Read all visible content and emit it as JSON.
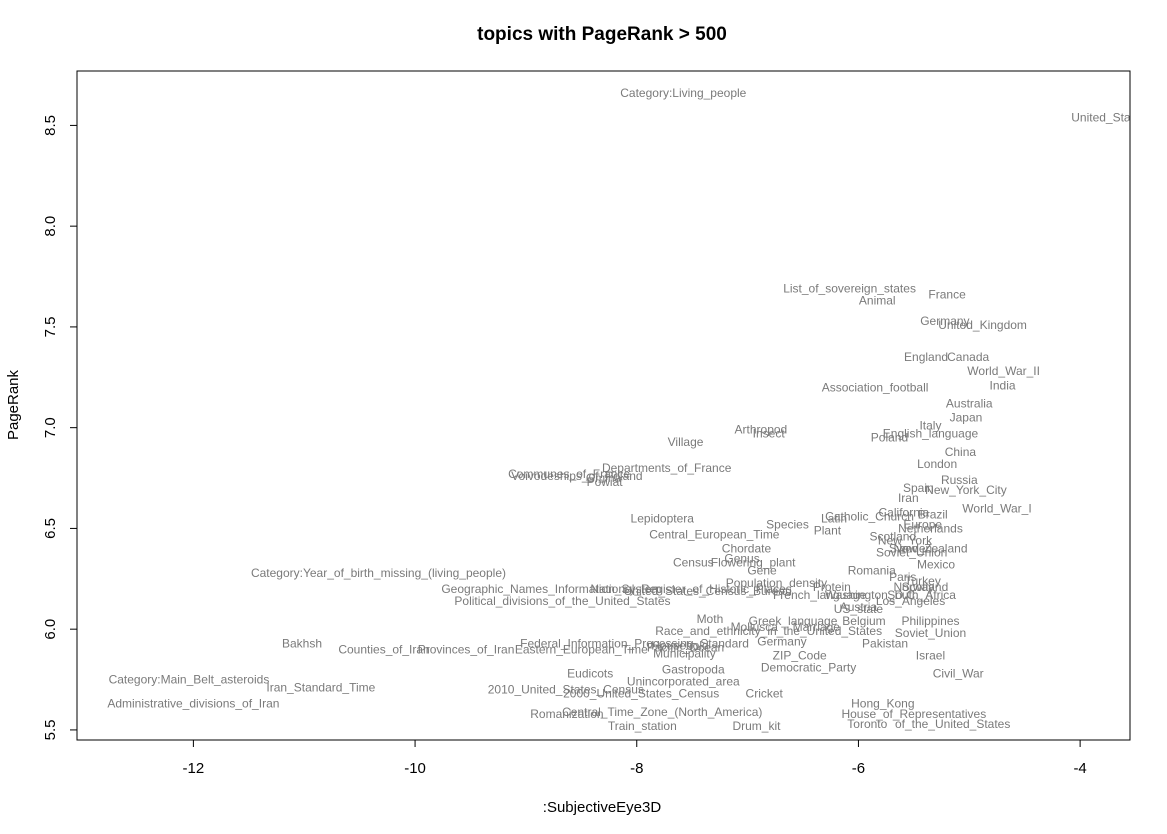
{
  "chart_data": {
    "type": "scatter",
    "title": "topics with PageRank > 500",
    "xlabel": ":SubjectiveEye3D",
    "ylabel": "PageRank",
    "xlim": [
      -13.05,
      -3.55
    ],
    "ylim": [
      5.45,
      8.77
    ],
    "x_ticks": [
      -12,
      -10,
      -8,
      -6,
      -4
    ],
    "x_tick_labels": [
      "-12",
      "-10",
      "-8",
      "-6",
      "-4"
    ],
    "y_ticks": [
      5.5,
      6.0,
      6.5,
      7.0,
      7.5,
      8.0,
      8.5
    ],
    "y_tick_labels": [
      "5.5",
      "6.0",
      "6.5",
      "7.0",
      "7.5",
      "8.0",
      "8.5"
    ],
    "grid": false,
    "legend": "none",
    "marker": "text-label",
    "points": [
      {
        "label": "Category:Living_people",
        "x": -7.58,
        "y": 8.66
      },
      {
        "label": "United_States",
        "x": -3.74,
        "y": 8.54
      },
      {
        "label": "List_of_sovereign_states",
        "x": -6.08,
        "y": 7.69
      },
      {
        "label": "Animal",
        "x": -5.83,
        "y": 7.63
      },
      {
        "label": "France",
        "x": -5.2,
        "y": 7.66
      },
      {
        "label": "Germany",
        "x": -5.22,
        "y": 7.53
      },
      {
        "label": "United_Kingdom",
        "x": -4.88,
        "y": 7.51
      },
      {
        "label": "England",
        "x": -5.39,
        "y": 7.35
      },
      {
        "label": "Canada",
        "x": -5.01,
        "y": 7.35
      },
      {
        "label": "World_War_II",
        "x": -4.69,
        "y": 7.28
      },
      {
        "label": "India",
        "x": -4.7,
        "y": 7.21
      },
      {
        "label": "Association_football",
        "x": -5.85,
        "y": 7.2
      },
      {
        "label": "Australia",
        "x": -5.0,
        "y": 7.12
      },
      {
        "label": "Japan",
        "x": -5.03,
        "y": 7.05
      },
      {
        "label": "Italy",
        "x": -5.35,
        "y": 7.01
      },
      {
        "label": "English_language",
        "x": -5.35,
        "y": 6.97
      },
      {
        "label": "Poland",
        "x": -5.72,
        "y": 6.95
      },
      {
        "label": "Arthropod",
        "x": -6.88,
        "y": 6.99
      },
      {
        "label": "Insect",
        "x": -6.81,
        "y": 6.97
      },
      {
        "label": "Village",
        "x": -7.56,
        "y": 6.93
      },
      {
        "label": "China",
        "x": -5.08,
        "y": 6.88
      },
      {
        "label": "London",
        "x": -5.29,
        "y": 6.82
      },
      {
        "label": "Departments_of_France",
        "x": -7.73,
        "y": 6.8
      },
      {
        "label": "Communes_of_France",
        "x": -8.61,
        "y": 6.77
      },
      {
        "label": "Voivodeships_of_Poland",
        "x": -8.54,
        "y": 6.76
      },
      {
        "label": "Gmina",
        "x": -8.3,
        "y": 6.75
      },
      {
        "label": "Powiat",
        "x": -8.29,
        "y": 6.73
      },
      {
        "label": "Russia",
        "x": -5.09,
        "y": 6.74
      },
      {
        "label": "Spain",
        "x": -5.46,
        "y": 6.7
      },
      {
        "label": "New_York_City",
        "x": -5.03,
        "y": 6.69
      },
      {
        "label": "Iran",
        "x": -5.55,
        "y": 6.65
      },
      {
        "label": "World_War_I",
        "x": -4.75,
        "y": 6.6
      },
      {
        "label": "California",
        "x": -5.59,
        "y": 6.58
      },
      {
        "label": "Brazil",
        "x": -5.33,
        "y": 6.57
      },
      {
        "label": "Catholic_Church",
        "x": -5.9,
        "y": 6.56
      },
      {
        "label": "Latin",
        "x": -6.22,
        "y": 6.55
      },
      {
        "label": "Lepidoptera",
        "x": -7.77,
        "y": 6.55
      },
      {
        "label": "Species",
        "x": -6.64,
        "y": 6.52
      },
      {
        "label": "Europe",
        "x": -5.42,
        "y": 6.52
      },
      {
        "label": "Netherlands",
        "x": -5.35,
        "y": 6.5
      },
      {
        "label": "Plant",
        "x": -6.28,
        "y": 6.49
      },
      {
        "label": "Central_European_Time",
        "x": -7.3,
        "y": 6.47
      },
      {
        "label": "Scotland",
        "x": -5.69,
        "y": 6.46
      },
      {
        "label": "New_York",
        "x": -5.58,
        "y": 6.44
      },
      {
        "label": "Chordate",
        "x": -7.01,
        "y": 6.4
      },
      {
        "label": "Sweden",
        "x": -5.53,
        "y": 6.4
      },
      {
        "label": "New_Zealand",
        "x": -5.35,
        "y": 6.4
      },
      {
        "label": "Soviet_Union",
        "x": -5.52,
        "y": 6.38
      },
      {
        "label": "Census",
        "x": -7.49,
        "y": 6.33
      },
      {
        "label": "Flowering_plant",
        "x": -6.95,
        "y": 6.33
      },
      {
        "label": "Genus",
        "x": -7.05,
        "y": 6.35
      },
      {
        "label": "Mexico",
        "x": -5.3,
        "y": 6.32
      },
      {
        "label": "Gene",
        "x": -6.87,
        "y": 6.29
      },
      {
        "label": "Romania",
        "x": -5.88,
        "y": 6.29
      },
      {
        "label": "Category:Year_of_birth_missing_(living_people)",
        "x": -10.33,
        "y": 6.28
      },
      {
        "label": "Paris",
        "x": -5.6,
        "y": 6.26
      },
      {
        "label": "Turkey",
        "x": -5.42,
        "y": 6.24
      },
      {
        "label": "Population_density",
        "x": -6.74,
        "y": 6.23
      },
      {
        "label": "Protein",
        "x": -6.24,
        "y": 6.21
      },
      {
        "label": "Norway",
        "x": -5.5,
        "y": 6.21
      },
      {
        "label": "Scotland",
        "x": -5.4,
        "y": 6.21
      },
      {
        "label": "Geographic_Names_Information_System",
        "x": -8.77,
        "y": 6.2
      },
      {
        "label": "National_Register_of_Historic_Places",
        "x": -7.51,
        "y": 6.2
      },
      {
        "label": "United_States_Census_Bureau",
        "x": -7.36,
        "y": 6.19
      },
      {
        "label": "French_language",
        "x": -6.35,
        "y": 6.17
      },
      {
        "label": "Washington_D.C.",
        "x": -5.88,
        "y": 6.17
      },
      {
        "label": "South_Africa",
        "x": -5.43,
        "y": 6.17
      },
      {
        "label": "Political_divisions_of_the_United_States",
        "x": -8.67,
        "y": 6.14
      },
      {
        "label": "Los_Angeles",
        "x": -5.53,
        "y": 6.14
      },
      {
        "label": "Austria",
        "x": -6.0,
        "y": 6.11
      },
      {
        "label": "US_state",
        "x": -6.0,
        "y": 6.1
      },
      {
        "label": "Moth",
        "x": -7.34,
        "y": 6.05
      },
      {
        "label": "Greek_language",
        "x": -6.59,
        "y": 6.04
      },
      {
        "label": "Belgium",
        "x": -5.95,
        "y": 6.04
      },
      {
        "label": "Philippines",
        "x": -5.35,
        "y": 6.04
      },
      {
        "label": "Mollusca",
        "x": -6.94,
        "y": 6.01
      },
      {
        "label": "Marriage",
        "x": -6.38,
        "y": 6.01
      },
      {
        "label": "Race_and_ethnicity_in_the_United_States",
        "x": -6.81,
        "y": 5.99
      },
      {
        "label": "Soviet_Union",
        "x": -5.35,
        "y": 5.98
      },
      {
        "label": "Bakhsh",
        "x": -11.02,
        "y": 5.93
      },
      {
        "label": "Counties_of_Iran",
        "x": -10.28,
        "y": 5.9
      },
      {
        "label": "Provinces_of_Iran",
        "x": -9.54,
        "y": 5.9
      },
      {
        "label": "Federal_Information_Processing_Standard",
        "x": -8.02,
        "y": 5.93
      },
      {
        "label": "Eastern_European_Time",
        "x": -8.5,
        "y": 5.9
      },
      {
        "label": "Pacific_Ocean",
        "x": -7.56,
        "y": 5.91
      },
      {
        "label": "Household",
        "x": -7.61,
        "y": 5.92
      },
      {
        "label": "Germany",
        "x": -6.69,
        "y": 5.94
      },
      {
        "label": "Pakistan",
        "x": -5.76,
        "y": 5.93
      },
      {
        "label": "Municipality",
        "x": -7.57,
        "y": 5.88
      },
      {
        "label": "ZIP_Code",
        "x": -6.53,
        "y": 5.87
      },
      {
        "label": "Israel",
        "x": -5.35,
        "y": 5.87
      },
      {
        "label": "Democratic_Party",
        "x": -6.45,
        "y": 5.81
      },
      {
        "label": "Civil_War",
        "x": -5.1,
        "y": 5.78
      },
      {
        "label": "Category:Main_Belt_asteroids",
        "x": -12.04,
        "y": 5.75
      },
      {
        "label": "Iran_Standard_Time",
        "x": -10.85,
        "y": 5.71
      },
      {
        "label": "Eudicots",
        "x": -8.42,
        "y": 5.78
      },
      {
        "label": "Gastropoda",
        "x": -7.49,
        "y": 5.8
      },
      {
        "label": "Unincorporated_area",
        "x": -7.58,
        "y": 5.74
      },
      {
        "label": "2010_United_States_Census",
        "x": -8.64,
        "y": 5.7
      },
      {
        "label": "2000_United_States_Census",
        "x": -7.96,
        "y": 5.68
      },
      {
        "label": "Cricket",
        "x": -6.85,
        "y": 5.68
      },
      {
        "label": "Administrative_divisions_of_Iran",
        "x": -12.0,
        "y": 5.63
      },
      {
        "label": "Romanization",
        "x": -8.63,
        "y": 5.58
      },
      {
        "label": "Central_Time_Zone_(North_America)",
        "x": -7.77,
        "y": 5.59
      },
      {
        "label": "Train_station",
        "x": -7.95,
        "y": 5.52
      },
      {
        "label": "Drum_kit",
        "x": -6.92,
        "y": 5.52
      },
      {
        "label": "Hong_Kong",
        "x": -5.78,
        "y": 5.63
      },
      {
        "label": "House_of_Representatives",
        "x": -5.5,
        "y": 5.58
      },
      {
        "label": "Toronto",
        "x": -5.92,
        "y": 5.53
      },
      {
        "label": "of_the_United_States",
        "x": -5.15,
        "y": 5.53
      }
    ]
  }
}
